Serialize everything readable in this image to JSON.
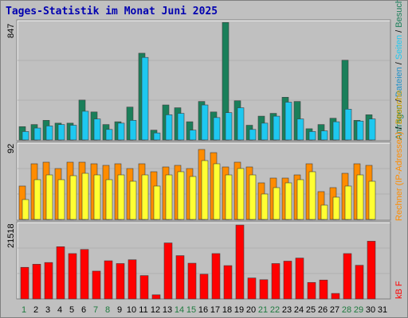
{
  "title": "Tages-Statistik im Monat Juni 2025",
  "colors": {
    "background": "#c0c0c0",
    "panel": "#c0c0c0",
    "title": "#0000b0",
    "weekend_day_label": "#1e7a3e",
    "weekday_day_label": "#000000",
    "anfragen": "#1a7f5a",
    "dateien": "#1ec8f0",
    "rechner": "#ff8c00",
    "kb": "#ff0000"
  },
  "legends": {
    "top_right": [
      "Anfragen",
      " / ",
      "Dateien",
      " / ",
      "Seiten",
      " / ",
      "Besuche"
    ],
    "middle_right": [
      "Rechner (IP-Adressen)",
      " / ",
      "Besuche"
    ],
    "bottom_right": "kB F"
  },
  "chart_data": [
    {
      "type": "bar",
      "title": "Tages-Statistik im Monat Juni 2025",
      "panel": "top",
      "categories": [
        "1",
        "2",
        "3",
        "4",
        "5",
        "6",
        "7",
        "8",
        "9",
        "10",
        "11",
        "12",
        "13",
        "14",
        "15",
        "16",
        "17",
        "18",
        "19",
        "20",
        "21",
        "22",
        "23",
        "24",
        "25",
        "26",
        "27",
        "28",
        "29",
        "30",
        "31"
      ],
      "ymax_label": "847",
      "ylim": [
        0,
        847
      ],
      "series": [
        {
          "name": "Anfragen",
          "color": "#1a7f5a",
          "values": [
            95,
            110,
            140,
            120,
            120,
            285,
            200,
            110,
            130,
            235,
            620,
            70,
            250,
            230,
            130,
            275,
            200,
            840,
            280,
            105,
            170,
            190,
            305,
            275,
            80,
            110,
            155,
            570,
            140,
            180,
            0
          ]
        },
        {
          "name": "Dateien",
          "color": "#1ec8f0",
          "values": [
            60,
            85,
            100,
            110,
            105,
            205,
            150,
            75,
            120,
            140,
            590,
            50,
            180,
            190,
            70,
            250,
            160,
            195,
            230,
            75,
            120,
            170,
            270,
            150,
            60,
            65,
            130,
            220,
            135,
            150,
            0
          ]
        }
      ]
    },
    {
      "type": "bar",
      "panel": "middle",
      "ymax_label": "92",
      "ylim": [
        0,
        92
      ],
      "series": [
        {
          "name": "Rechner (IP-Adressen)",
          "color": "#ff8c00",
          "values": [
            42,
            70,
            72,
            64,
            72,
            72,
            70,
            68,
            70,
            64,
            70,
            60,
            66,
            68,
            64,
            88,
            84,
            66,
            72,
            66,
            46,
            52,
            52,
            56,
            70,
            35,
            40,
            58,
            70,
            68,
            0
          ]
        },
        {
          "name": "Besuche",
          "color": "#ffff33",
          "values": [
            25,
            50,
            56,
            50,
            55,
            58,
            56,
            50,
            56,
            48,
            56,
            42,
            56,
            60,
            54,
            74,
            70,
            56,
            64,
            56,
            32,
            40,
            46,
            50,
            60,
            18,
            28,
            42,
            56,
            48,
            0
          ]
        }
      ]
    },
    {
      "type": "bar",
      "panel": "bottom",
      "ymax_label": "21518",
      "ylim": [
        0,
        21518
      ],
      "series": [
        {
          "name": "kB F",
          "color": "#ff0000",
          "values": [
            9200,
            10100,
            10600,
            15200,
            13200,
            14400,
            8100,
            11100,
            10300,
            11400,
            6800,
            1200,
            16300,
            12600,
            10400,
            7200,
            13200,
            9700,
            21500,
            6100,
            5600,
            10300,
            11000,
            11900,
            4800,
            5500,
            1600,
            13200,
            9800,
            16800,
            0
          ]
        }
      ]
    }
  ]
}
